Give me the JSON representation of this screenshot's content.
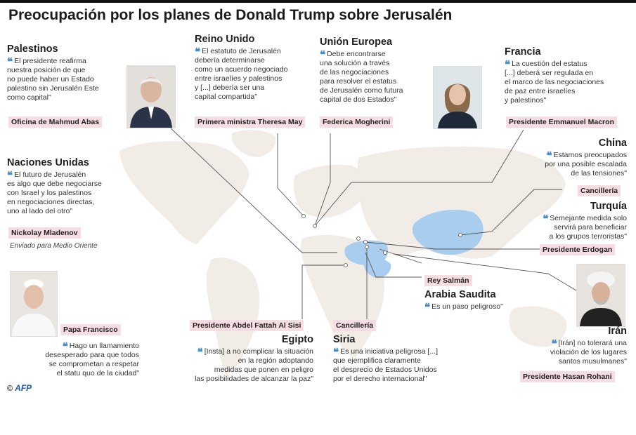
{
  "title": "Preocupación por los planes de Donald Trump sobre Jerusalén",
  "colors": {
    "quote_mark": "#4a8fd0",
    "badge_bg": "#f6dde4",
    "land": "#f1ece6",
    "china_highlight": "#a8cdee"
  },
  "entries": {
    "palestinos": {
      "country": "Palestinos",
      "quote": "El presidente reafirma\nnuestra posición de que\nno puede haber un Estado\npalestino sin Jerusalén Este\ncomo capital\"",
      "source": "Oficina de Mahmud Abas"
    },
    "reino_unido": {
      "country": "Reino Unido",
      "quote": "El estatuto de Jerusalén\ndebería determinarse\ncomo un acuerdo negociado\nentre israelíes y palestinos\ny [...] debería ser una\ncapital compartida\"",
      "source": "Primera ministra Theresa May"
    },
    "union_europea": {
      "country": "Unión Europea",
      "quote": "Debe encontrarse\nuna solución a través\nde las negociaciones\npara resolver el estatus\nde Jerusalén como futura\ncapital de dos Estados\"",
      "source": "Federica Mogherini"
    },
    "francia": {
      "country": "Francia",
      "quote": "La cuestión del estatus\n[...] deberá ser regulada en\nel marco de las negociaciones\nde paz entre israelíes\ny palestinos\"",
      "source": "Presidente Emmanuel Macron"
    },
    "naciones_unidas": {
      "country": "Naciones Unidas",
      "quote": "El futuro de Jerusalén\nes algo que debe negociarse\ncon Israel y los palestinos\nen negociaciones directas,\nuno al lado del otro\"",
      "source": "Nickolay Mladenov",
      "role": "Enviado para Medio Oriente"
    },
    "china": {
      "country": "China",
      "quote": "Estamos preocupados\npor una posible escalada\nde las tensiones\"",
      "source": "Cancillería"
    },
    "turquia": {
      "country": "Turquía",
      "quote": "Semejante medida solo\nservirá para beneficiar\na los grupos terroristas\"",
      "source": "Presidente Erdogan"
    },
    "arabia_saudita": {
      "country": "Arabia Saudita",
      "quote": "Es un paso peligroso\"",
      "source": "Rey Salmán"
    },
    "iran": {
      "country": "Irán",
      "quote": "[Irán] no tolerará una\nviolación de los lugares\nsantos musulmanes\"",
      "source": "Presidente Hasan Rohani"
    },
    "papa": {
      "quote": "Hago un llamamiento\ndesesperado para que todos\nse comprometan a respetar\nel statu quo de la ciudad\"",
      "source": "Papa Francisco"
    },
    "egipto": {
      "country": "Egipto",
      "quote": "[Insta] a no complicar la situación\nen la región adoptando\nmedidas que ponen en peligro\nlas posibilidades de alcanzar la paz\"",
      "source": "Presidente Abdel Fattah Al Sisi"
    },
    "siria": {
      "country": "Siria",
      "quote": "Es una iniciativa peligrosa [...]\nque ejemplifica claramente\nel desprecio de Estados Unidos\npor el derecho internacional\"",
      "source": "Cancillería"
    }
  },
  "credit": {
    "symbol": "©",
    "agency": "AFP"
  }
}
